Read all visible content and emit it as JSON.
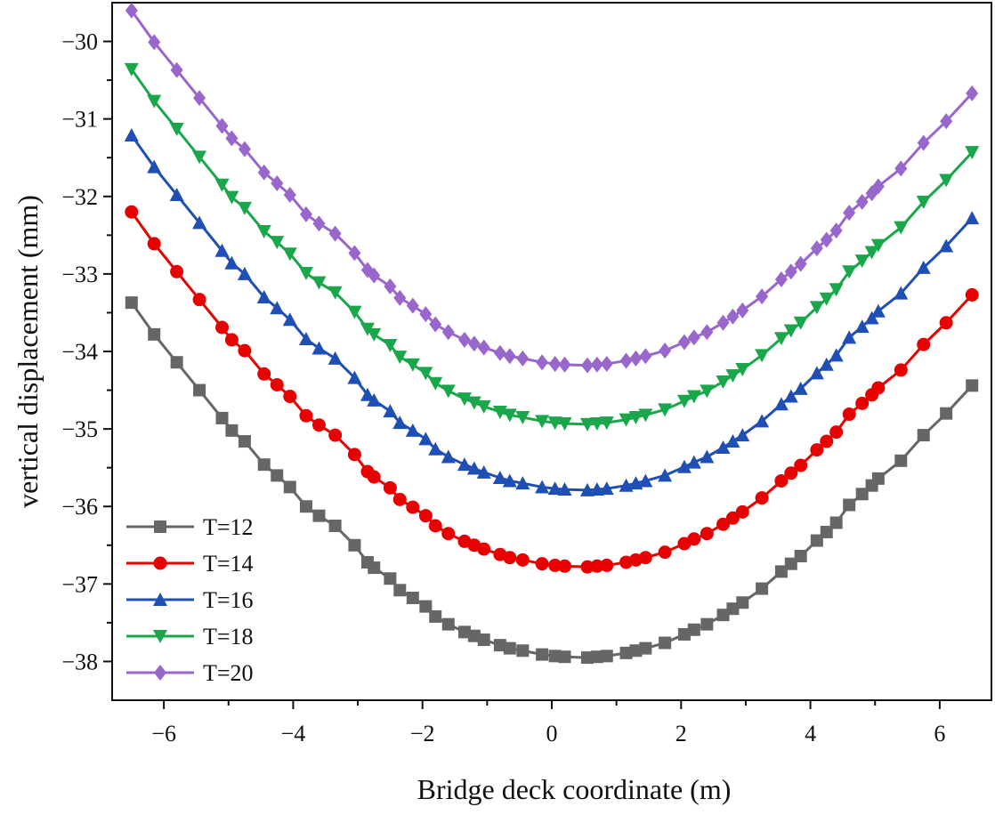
{
  "chart_data": {
    "type": "line",
    "title": "",
    "xlabel": "Bridge deck coordinate (m)",
    "ylabel": "vertical displacement (mm)",
    "xlim": [
      -6.8,
      6.8
    ],
    "ylim": [
      -38.5,
      -29.5
    ],
    "xticks": [
      -6,
      -4,
      -2,
      0,
      2,
      4,
      6
    ],
    "xtick_labels": [
      "−6",
      "−4",
      "−2",
      "0",
      "2",
      "4",
      "6"
    ],
    "yticks": [
      -30,
      -31,
      -32,
      -33,
      -34,
      -35,
      -36,
      -37,
      -38
    ],
    "ytick_labels": [
      "−30",
      "−31",
      "−32",
      "−33",
      "−34",
      "−35",
      "−36",
      "−37",
      "−38"
    ],
    "legend_position": "bottom-left",
    "x": [
      -6.5,
      -6.15,
      -5.8,
      -5.45,
      -5.1,
      -4.95,
      -4.75,
      -4.45,
      -4.25,
      -4.05,
      -3.8,
      -3.6,
      -3.35,
      -3.05,
      -2.85,
      -2.75,
      -2.5,
      -2.35,
      -2.15,
      -1.95,
      -1.8,
      -1.6,
      -1.35,
      -1.2,
      -1.05,
      -0.8,
      -0.65,
      -0.45,
      -0.15,
      0.05,
      0.2,
      0.55,
      0.7,
      0.85,
      1.15,
      1.3,
      1.45,
      1.75,
      2.05,
      2.2,
      2.4,
      2.65,
      2.8,
      2.95,
      3.25,
      3.55,
      3.7,
      3.85,
      4.1,
      4.25,
      4.4,
      4.6,
      4.8,
      4.95,
      5.05,
      5.4,
      5.75,
      6.1,
      6.5
    ],
    "series": [
      {
        "name": "T=12",
        "color": "#666666",
        "marker": "square",
        "offset": 0
      },
      {
        "name": "T=14",
        "color": "#e60000",
        "marker": "circle",
        "offset": 1.17
      },
      {
        "name": "T=16",
        "color": "#1f4fb4",
        "marker": "triangle-up",
        "offset": 2.16
      },
      {
        "name": "T=18",
        "color": "#1aa64a",
        "marker": "triangle-down",
        "offset": 3.01
      },
      {
        "name": "T=20",
        "color": "#9966cc",
        "marker": "diamond",
        "offset": 3.77
      }
    ],
    "base_curve": {
      "description_of_values": "T=12 values; other series = base + offset",
      "values": [
        -33.37,
        -33.78,
        -34.14,
        -34.5,
        -34.86,
        -35.02,
        -35.16,
        -35.46,
        -35.6,
        -35.75,
        -36.0,
        -36.12,
        -36.25,
        -36.5,
        -36.72,
        -36.79,
        -36.93,
        -37.08,
        -37.18,
        -37.29,
        -37.42,
        -37.52,
        -37.62,
        -37.67,
        -37.72,
        -37.79,
        -37.83,
        -37.86,
        -37.91,
        -37.93,
        -37.94,
        -37.95,
        -37.94,
        -37.93,
        -37.89,
        -37.86,
        -37.83,
        -37.76,
        -37.65,
        -37.59,
        -37.52,
        -37.4,
        -37.32,
        -37.24,
        -37.06,
        -36.84,
        -36.74,
        -36.64,
        -36.44,
        -36.33,
        -36.21,
        -35.98,
        -35.84,
        -35.73,
        -35.64,
        -35.41,
        -35.08,
        -34.8,
        -34.44
      ]
    }
  }
}
